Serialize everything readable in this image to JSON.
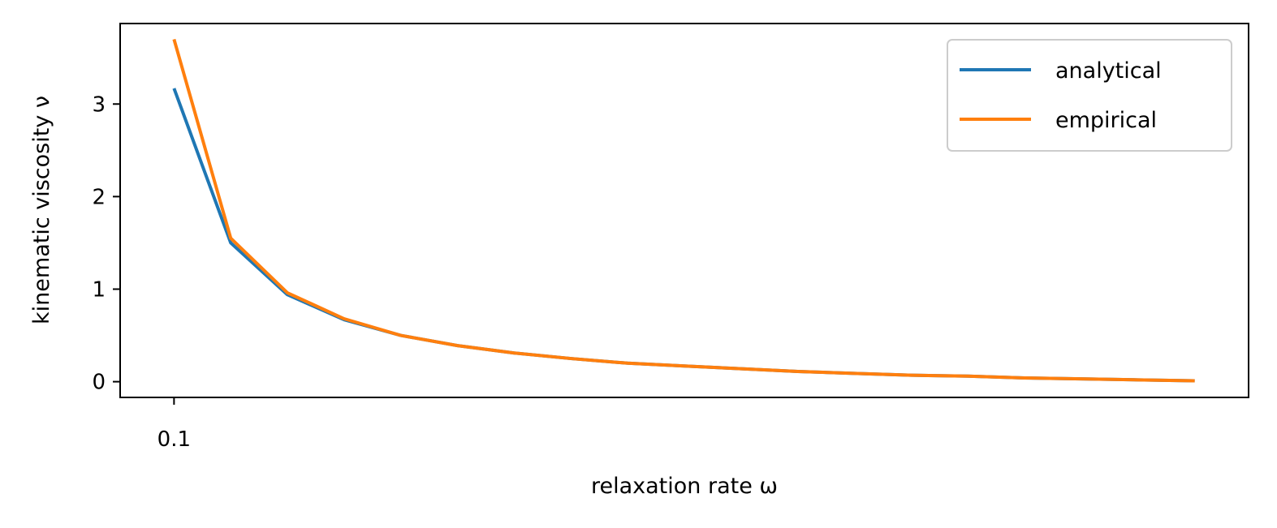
{
  "chart_data": {
    "type": "line",
    "title": "",
    "xlabel": "relaxation rate ω",
    "ylabel": "kinematic viscosity ν",
    "x": [
      0.1,
      0.2,
      0.3,
      0.4,
      0.5,
      0.6,
      0.7,
      0.8,
      0.9,
      1.0,
      1.1,
      1.2,
      1.3,
      1.4,
      1.5,
      1.6,
      1.7,
      1.8,
      1.9
    ],
    "series": [
      {
        "name": "analytical",
        "color": "#1f77b4",
        "values": [
          3.17,
          1.5,
          0.94,
          0.67,
          0.5,
          0.39,
          0.31,
          0.25,
          0.2,
          0.17,
          0.14,
          0.11,
          0.09,
          0.07,
          0.06,
          0.04,
          0.03,
          0.02,
          0.01
        ]
      },
      {
        "name": "empirical",
        "color": "#ff7f0e",
        "values": [
          3.7,
          1.55,
          0.96,
          0.68,
          0.5,
          0.39,
          0.31,
          0.25,
          0.2,
          0.17,
          0.14,
          0.11,
          0.09,
          0.07,
          0.06,
          0.04,
          0.03,
          0.02,
          0.01
        ]
      }
    ],
    "xlim": [
      0.005,
      1.995
    ],
    "ylim": [
      -0.17,
      3.87
    ],
    "xticks": [
      0.1
    ],
    "xtick_labels": [
      "0.1"
    ],
    "yticks": [
      0,
      1,
      2,
      3
    ],
    "ytick_labels": [
      "0",
      "1",
      "2",
      "3"
    ],
    "grid": false,
    "legend_position": "top-right"
  }
}
